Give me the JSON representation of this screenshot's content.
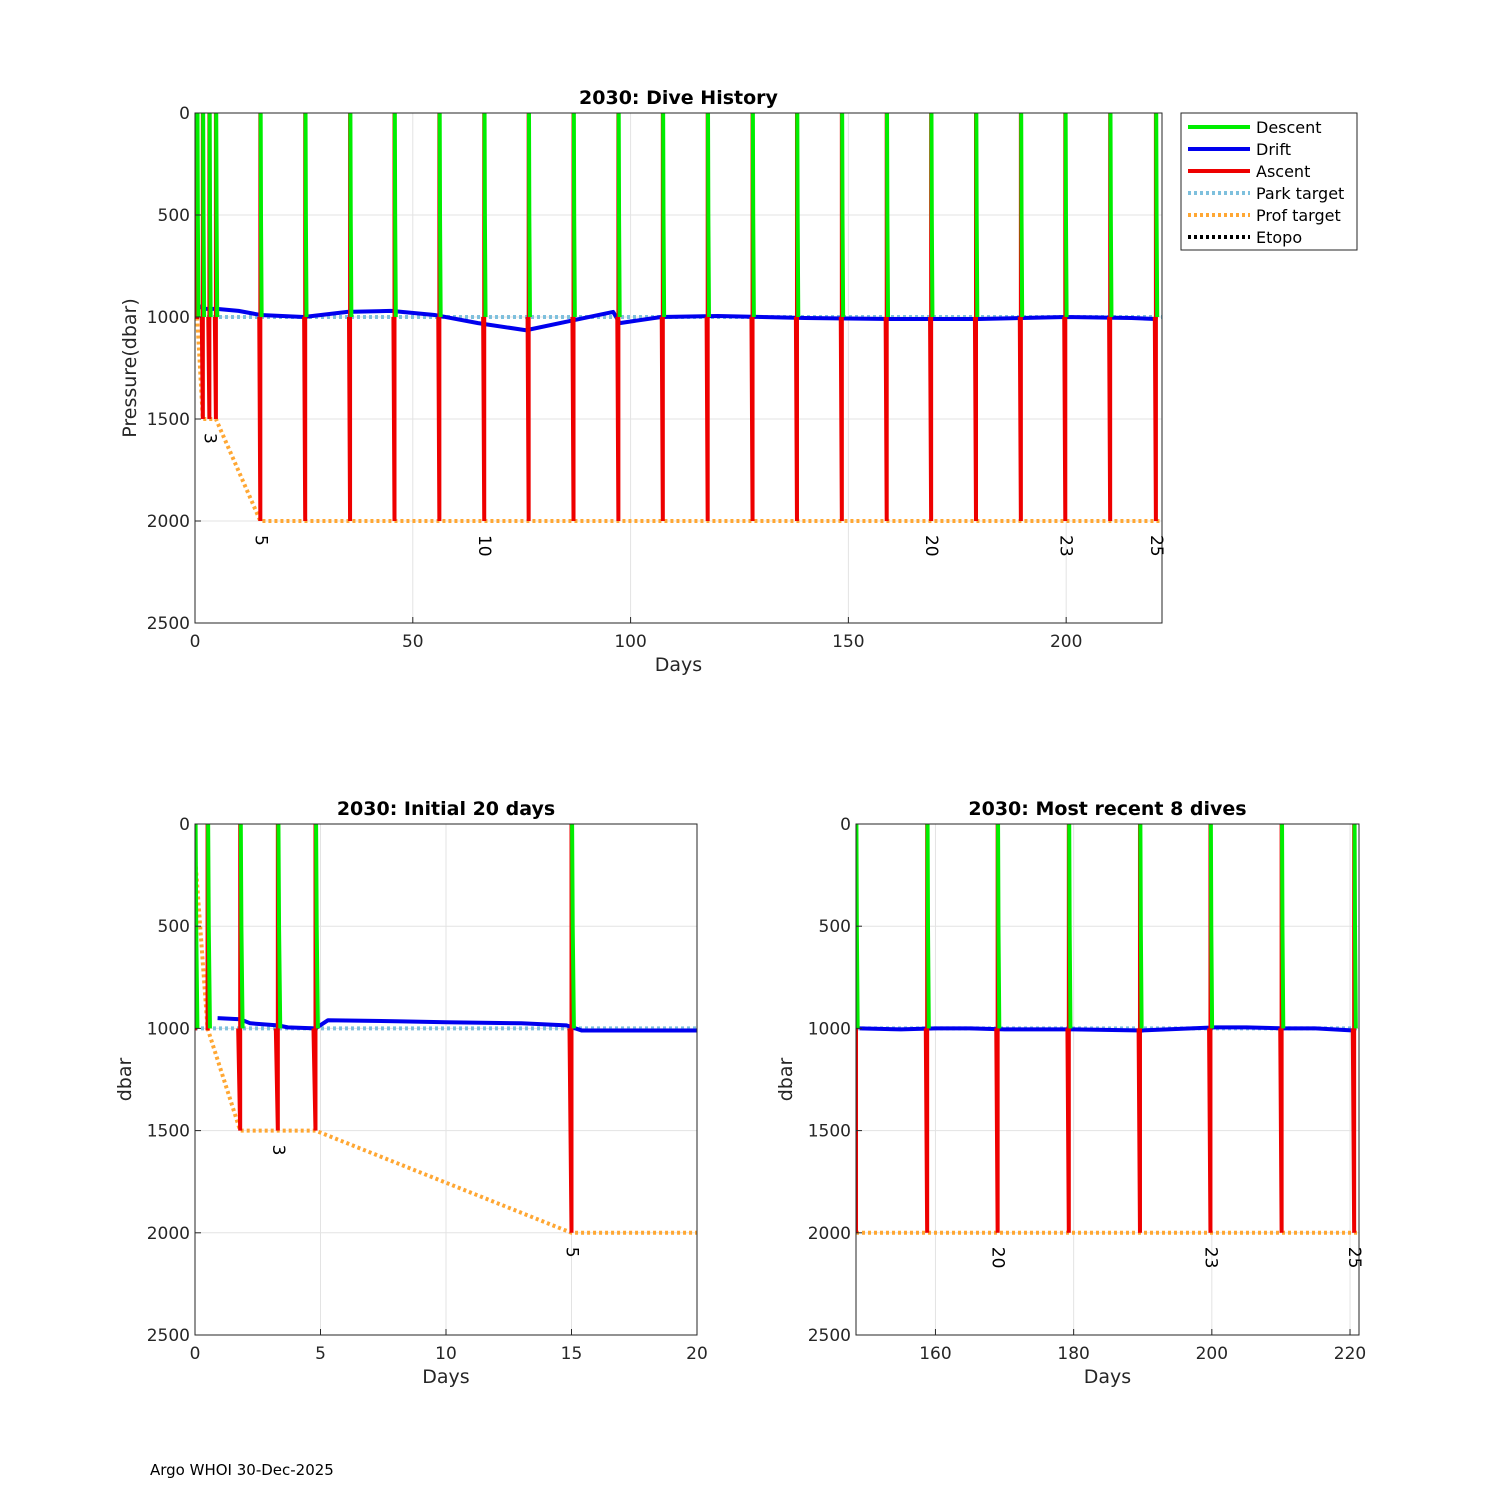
{
  "footer": "Argo WHOI 30-Dec-2025",
  "legend": {
    "items": [
      {
        "label": "Descent",
        "color": "#00ee00",
        "style": "solid"
      },
      {
        "label": "Drift",
        "color": "#0000ee",
        "style": "solid"
      },
      {
        "label": "Ascent",
        "color": "#ee0000",
        "style": "solid"
      },
      {
        "label": "Park target",
        "color": "#7ec0dd",
        "style": "dotted"
      },
      {
        "label": "Prof target",
        "color": "#ffa733",
        "style": "dotted"
      },
      {
        "label": "Etopo",
        "color": "#000000",
        "style": "dotted"
      }
    ]
  },
  "chart_data": [
    {
      "type": "line",
      "title": "2030: Dive History",
      "xlabel": "Days",
      "ylabel": "Pressure(dbar)",
      "xlim": [
        0,
        222
      ],
      "ylim": [
        0,
        2500
      ],
      "y_reversed": true,
      "xticks": [
        0,
        50,
        100,
        150,
        200
      ],
      "yticks": [
        0,
        500,
        1000,
        1500,
        2000,
        2500
      ],
      "cycle_starts": [
        0,
        0.5,
        1.8,
        3.3,
        4.8,
        15,
        25.3,
        35.6,
        45.8,
        56.1,
        66.4,
        76.6,
        86.9,
        97.2,
        107.4,
        117.7,
        128,
        138.2,
        148.5,
        158.8,
        169,
        179.3,
        189.6,
        199.8,
        210.1,
        220.6
      ],
      "cycle_depths": [
        1000,
        1000,
        1500,
        1500,
        1500,
        2000,
        2000,
        2000,
        2000,
        2000,
        2000,
        2000,
        2000,
        2000,
        2000,
        2000,
        2000,
        2000,
        2000,
        2000,
        2000,
        2000,
        2000,
        2000,
        2000,
        2000
      ],
      "drift": {
        "x": [
          0.5,
          2,
          5,
          10,
          15,
          25,
          35,
          45,
          55,
          65,
          76,
          86,
          96,
          97.5,
          107,
          120,
          140,
          160,
          180,
          200,
          215,
          220.5
        ],
        "y": [
          940,
          960,
          960,
          970,
          990,
          1000,
          975,
          970,
          990,
          1030,
          1065,
          1020,
          975,
          1030,
          1000,
          995,
          1005,
          1010,
          1010,
          1000,
          1005,
          1010
        ]
      },
      "park_target": 1000,
      "prof_target": {
        "x": [
          0,
          0.5,
          1.8,
          4.8,
          15,
          222
        ],
        "y": [
          150,
          1000,
          1500,
          1500,
          2000,
          2000
        ]
      },
      "cycle_labels": [
        {
          "day": 3.3,
          "text": "3"
        },
        {
          "day": 15,
          "text": "5"
        },
        {
          "day": 66.4,
          "text": "10"
        },
        {
          "day": 169,
          "text": "20"
        },
        {
          "day": 199.8,
          "text": "23"
        },
        {
          "day": 220.6,
          "text": "25"
        }
      ]
    },
    {
      "type": "line",
      "title": "2030: Initial 20 days",
      "xlabel": "Days",
      "ylabel": "dbar",
      "xlim": [
        0,
        20
      ],
      "ylim": [
        0,
        2500
      ],
      "y_reversed": true,
      "xticks": [
        0,
        5,
        10,
        15,
        20
      ],
      "yticks": [
        0,
        500,
        1000,
        1500,
        2000,
        2500
      ],
      "cycle_starts": [
        0,
        0.5,
        1.8,
        3.3,
        4.8,
        15
      ],
      "cycle_depths": [
        1000,
        1000,
        1500,
        1500,
        1500,
        2000
      ],
      "drift": {
        "x": [
          0.9,
          1.8,
          2.2,
          3.3,
          3.7,
          4.8,
          5.3,
          8,
          10,
          13,
          14.8,
          15.4,
          20
        ],
        "y": [
          950,
          955,
          975,
          985,
          995,
          1000,
          960,
          965,
          970,
          975,
          985,
          1010,
          1010
        ]
      },
      "park_target": 1000,
      "prof_target": {
        "x": [
          0,
          0.5,
          1.8,
          4.8,
          15,
          20
        ],
        "y": [
          150,
          1000,
          1500,
          1500,
          2000,
          2000
        ]
      },
      "cycle_labels": [
        {
          "day": 3.3,
          "text": "3"
        },
        {
          "day": 15,
          "text": "5"
        }
      ]
    },
    {
      "type": "line",
      "title": "2030: Most recent 8 dives",
      "xlabel": "Days",
      "ylabel": "dbar",
      "xlim": [
        148.5,
        221.3
      ],
      "ylim": [
        0,
        2500
      ],
      "y_reversed": true,
      "xticks": [
        160,
        180,
        200,
        220
      ],
      "yticks": [
        0,
        500,
        1000,
        1500,
        2000,
        2500
      ],
      "cycle_starts": [
        148.5,
        158.8,
        169,
        179.3,
        189.6,
        199.8,
        210.1,
        220.6
      ],
      "cycle_depths": [
        2000,
        2000,
        2000,
        2000,
        2000,
        2000,
        2000,
        2000
      ],
      "drift": {
        "x": [
          149,
          155,
          160,
          165,
          170,
          180,
          190,
          200.5,
          205,
          210.5,
          215,
          220.5
        ],
        "y": [
          1000,
          1005,
          1000,
          1000,
          1005,
          1005,
          1010,
          995,
          995,
          1000,
          1000,
          1010
        ]
      },
      "park_target": 1000,
      "prof_target": {
        "x": [
          148.5,
          221.3
        ],
        "y": [
          2000,
          2000
        ]
      },
      "cycle_labels": [
        {
          "day": 169,
          "text": "20"
        },
        {
          "day": 199.8,
          "text": "23"
        },
        {
          "day": 220.6,
          "text": "25"
        }
      ]
    }
  ]
}
